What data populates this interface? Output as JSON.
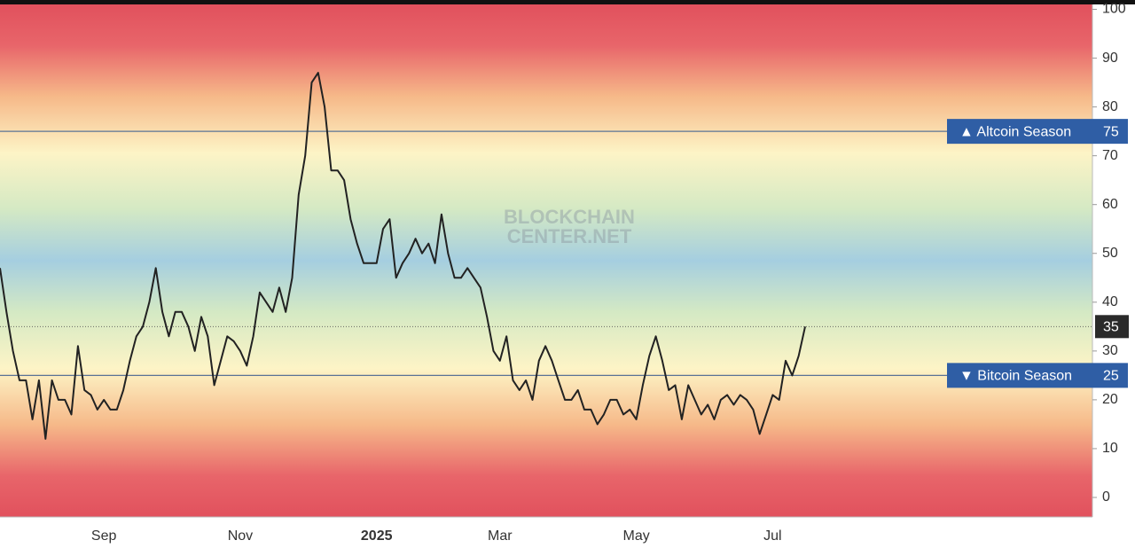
{
  "chart_data": {
    "type": "line",
    "watermark": [
      "BLOCKCHAIN",
      "CENTER.NET"
    ],
    "categories": [
      null,
      null,
      null,
      null,
      null,
      null,
      null,
      null,
      null,
      null,
      null,
      null,
      null,
      null,
      null,
      null,
      "Sep",
      null,
      null,
      null,
      null,
      null,
      null,
      null,
      null,
      null,
      null,
      null,
      null,
      null,
      null,
      null,
      null,
      null,
      null,
      null,
      null,
      "Nov",
      null,
      null,
      null,
      null,
      null,
      null,
      null,
      null,
      null,
      null,
      null,
      null,
      null,
      null,
      null,
      null,
      null,
      null,
      null,
      null,
      "2025",
      null,
      null,
      null,
      null,
      null,
      null,
      null,
      null,
      null,
      null,
      null,
      null,
      null,
      null,
      null,
      null,
      null,
      null,
      "Mar",
      null,
      null,
      null,
      null,
      null,
      null,
      null,
      null,
      null,
      null,
      null,
      null,
      null,
      null,
      null,
      null,
      null,
      null,
      null,
      null,
      "May",
      null,
      null,
      null,
      null,
      null,
      null,
      null,
      null,
      null,
      null,
      null,
      null,
      null,
      null,
      null,
      null,
      null,
      null,
      null,
      null,
      "Jul",
      null,
      null,
      null,
      null,
      null
    ],
    "values": [
      47,
      38,
      30,
      24,
      24,
      16,
      24,
      12,
      24,
      20,
      20,
      17,
      31,
      22,
      21,
      18,
      20,
      18,
      18,
      22,
      28,
      33,
      35,
      40,
      47,
      38,
      33,
      38,
      38,
      35,
      30,
      37,
      33,
      23,
      28,
      33,
      32,
      30,
      27,
      33,
      42,
      40,
      38,
      43,
      38,
      45,
      62,
      70,
      85,
      87,
      80,
      67,
      67,
      65,
      57,
      52,
      48,
      48,
      48,
      55,
      57,
      45,
      48,
      50,
      53,
      50,
      52,
      48,
      58,
      50,
      45,
      45,
      47,
      45,
      43,
      37,
      30,
      28,
      33,
      24,
      22,
      24,
      20,
      28,
      31,
      28,
      24,
      20,
      20,
      22,
      18,
      18,
      15,
      17,
      20,
      20,
      17,
      18,
      16,
      23,
      29,
      33,
      28,
      22,
      23,
      16,
      23,
      20,
      17,
      19,
      16,
      20,
      21,
      19,
      21,
      20,
      18,
      13,
      17,
      21,
      20,
      28,
      25,
      29,
      35
    ],
    "color": "#222222",
    "ylim": [
      -4,
      101
    ],
    "yticks": [
      0,
      10,
      20,
      30,
      40,
      50,
      60,
      70,
      80,
      90,
      100
    ],
    "thresholds": [
      {
        "value": 75,
        "label": "▲ Altcoin Season"
      },
      {
        "value": 25,
        "label": "▼ Bitcoin Season"
      }
    ]
  }
}
